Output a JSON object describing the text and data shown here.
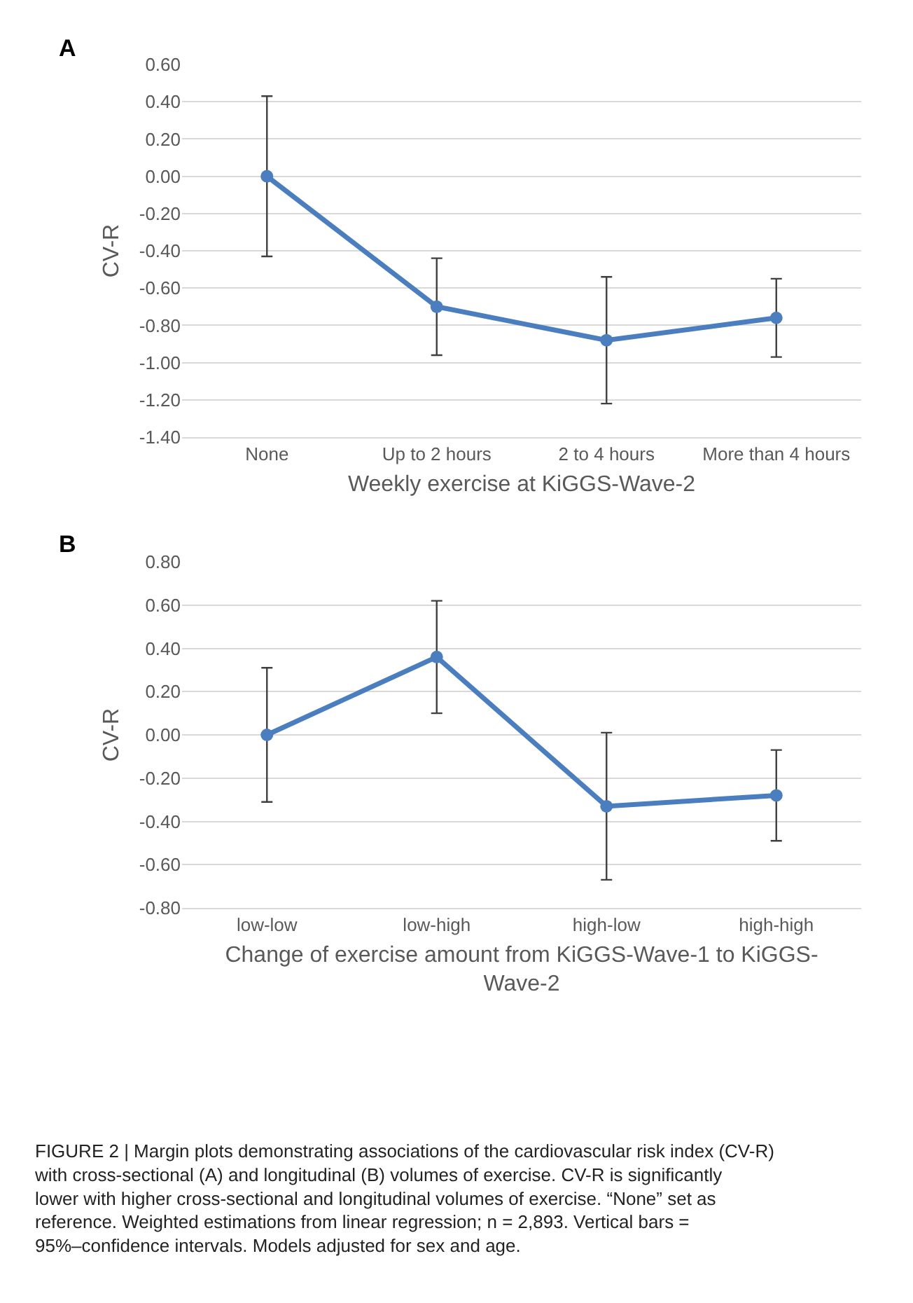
{
  "chart_data": [
    {
      "type": "line",
      "title": "A",
      "xlabel": "Weekly exercise at KiGGS-Wave-2",
      "ylabel": "CV-R",
      "categories": [
        "None",
        "Up to 2 hours",
        "2 to 4 hours",
        "More than 4 hours"
      ],
      "series": [
        {
          "color": "#4a7ebf",
          "values": [
            0.0,
            -0.7,
            -0.88,
            -0.76
          ],
          "errors": [
            [
              -0.43,
              0.43
            ],
            [
              -0.96,
              -0.44
            ],
            [
              -1.22,
              -0.54
            ],
            [
              -0.97,
              -0.55
            ]
          ]
        }
      ],
      "ylim": [
        -1.4,
        0.6
      ],
      "yticks": [
        {
          "value": -1.4,
          "label": "-1.40"
        },
        {
          "value": -1.2,
          "label": "-1.20"
        },
        {
          "value": -1.0,
          "label": "-1.00"
        },
        {
          "value": -0.8,
          "label": "-0.80"
        },
        {
          "value": -0.6,
          "label": "-0.60"
        },
        {
          "value": -0.4,
          "label": "-0.40"
        },
        {
          "value": -0.2,
          "label": "-0.20"
        },
        {
          "value": 0,
          "label": "0.00"
        },
        {
          "value": 0.2,
          "label": "0.20"
        },
        {
          "value": 0.4,
          "label": "0.40"
        },
        {
          "value": 0.6,
          "label": "0.60"
        }
      ],
      "grid": "y",
      "marker": "circle",
      "line_style": "solid"
    },
    {
      "type": "line",
      "title": "B",
      "xlabel": "Change of exercise amount from KiGGS-Wave-1 to KiGGS-Wave-2",
      "ylabel": "CV-R",
      "categories": [
        "low-low",
        "low-high",
        "high-low",
        "high-high"
      ],
      "series": [
        {
          "color": "#4a7ebf",
          "values": [
            0.0,
            0.36,
            -0.33,
            -0.28
          ],
          "errors": [
            [
              -0.31,
              0.31
            ],
            [
              0.1,
              0.62
            ],
            [
              -0.67,
              0.01
            ],
            [
              -0.49,
              -0.07
            ]
          ]
        }
      ],
      "ylim": [
        -0.8,
        0.8
      ],
      "yticks": [
        {
          "value": -0.8,
          "label": "-0.80"
        },
        {
          "value": -0.6,
          "label": "-0.60"
        },
        {
          "value": -0.4,
          "label": "-0.40"
        },
        {
          "value": -0.2,
          "label": "-0.20"
        },
        {
          "value": 0,
          "label": "0.00"
        },
        {
          "value": 0.2,
          "label": "0.20"
        },
        {
          "value": 0.4,
          "label": "0.40"
        },
        {
          "value": 0.6,
          "label": "0.60"
        },
        {
          "value": 0.8,
          "label": "0.80"
        }
      ],
      "grid": "y",
      "marker": "circle",
      "line_style": "solid",
      "annotations": [
        "FIGURE 2 | Margin plots demonstrating associations of the cardiovascular risk index (CV-R) with cross-sectional (A) and longitudinal (B) volumes of exercise. CV-R is significantly lower with higher cross-sectional and longitudinal volumes of exercise. “None” set as reference. Weighted estimations from linear regression; n = 2,893. Vertical bars = 95%–confidence intervals. Models adjusted for sex and age."
      ]
    }
  ]
}
